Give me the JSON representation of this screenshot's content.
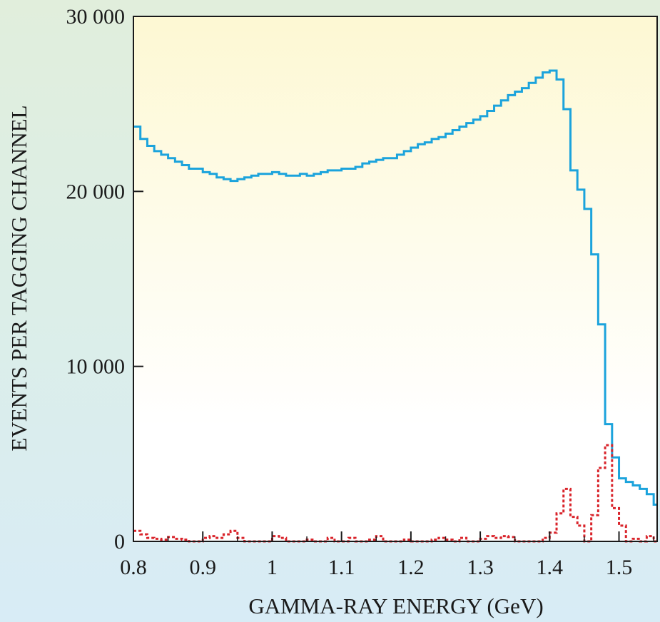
{
  "chart_data": {
    "type": "line",
    "title": "",
    "xlabel": "GAMMA-RAY ENERGY (GeV)",
    "ylabel": "EVENTS PER TAGGING CHANNEL",
    "xlim": [
      0.8,
      1.555
    ],
    "ylim": [
      0,
      30000
    ],
    "x_ticks": [
      0.8,
      0.9,
      1.0,
      1.1,
      1.2,
      1.3,
      1.4,
      1.5
    ],
    "x_tick_labels": [
      "0.8",
      "0.9",
      "1",
      "1.1",
      "1.2",
      "1.3",
      "1.4",
      "1.5"
    ],
    "y_ticks": [
      0,
      10000,
      20000,
      30000
    ],
    "y_tick_labels": [
      "0",
      "10 000",
      "20 000",
      "30 000"
    ],
    "grid": false,
    "legend": "none",
    "background_gradient": [
      "#fdf8d3",
      "#ffffff"
    ],
    "series": [
      {
        "style": "solid step",
        "color": "#1ba3dc",
        "x": [
          0.8,
          0.81,
          0.82,
          0.83,
          0.84,
          0.85,
          0.86,
          0.87,
          0.88,
          0.89,
          0.9,
          0.91,
          0.92,
          0.93,
          0.94,
          0.95,
          0.96,
          0.97,
          0.98,
          0.99,
          1.0,
          1.01,
          1.02,
          1.03,
          1.04,
          1.05,
          1.06,
          1.07,
          1.08,
          1.09,
          1.1,
          1.11,
          1.12,
          1.13,
          1.14,
          1.15,
          1.16,
          1.17,
          1.18,
          1.19,
          1.2,
          1.21,
          1.22,
          1.23,
          1.24,
          1.25,
          1.26,
          1.27,
          1.28,
          1.29,
          1.3,
          1.31,
          1.32,
          1.33,
          1.34,
          1.35,
          1.36,
          1.37,
          1.38,
          1.39,
          1.4,
          1.41,
          1.42,
          1.43,
          1.44,
          1.45,
          1.46,
          1.47,
          1.48,
          1.49,
          1.5,
          1.51,
          1.52,
          1.53,
          1.54,
          1.55
        ],
        "y": [
          23700,
          23000,
          22600,
          22300,
          22100,
          21900,
          21700,
          21500,
          21300,
          21300,
          21100,
          21000,
          20800,
          20700,
          20600,
          20700,
          20800,
          20900,
          21000,
          21000,
          21100,
          21000,
          20900,
          20900,
          21000,
          20900,
          21000,
          21100,
          21200,
          21200,
          21300,
          21300,
          21400,
          21600,
          21700,
          21800,
          21900,
          21900,
          22100,
          22300,
          22500,
          22700,
          22800,
          23000,
          23100,
          23300,
          23500,
          23700,
          23900,
          24100,
          24300,
          24600,
          24900,
          25200,
          25500,
          25700,
          25900,
          26200,
          26500,
          26800,
          26900,
          26400,
          24700,
          21200,
          20100,
          19000,
          16400,
          12400,
          6700,
          4800,
          3600,
          3400,
          3200,
          3000,
          2700,
          2100
        ]
      },
      {
        "style": "dotted",
        "color": "#d9242b",
        "x": [
          0.8,
          0.81,
          0.82,
          0.83,
          0.84,
          0.85,
          0.86,
          0.87,
          0.88,
          0.89,
          0.9,
          0.91,
          0.92,
          0.93,
          0.94,
          0.95,
          0.96,
          0.97,
          0.98,
          0.99,
          1.0,
          1.01,
          1.02,
          1.03,
          1.04,
          1.05,
          1.06,
          1.07,
          1.08,
          1.09,
          1.1,
          1.11,
          1.12,
          1.13,
          1.14,
          1.15,
          1.16,
          1.17,
          1.18,
          1.19,
          1.2,
          1.21,
          1.22,
          1.23,
          1.24,
          1.25,
          1.26,
          1.27,
          1.28,
          1.29,
          1.3,
          1.31,
          1.32,
          1.33,
          1.34,
          1.35,
          1.36,
          1.37,
          1.38,
          1.39,
          1.4,
          1.41,
          1.42,
          1.43,
          1.44,
          1.45,
          1.46,
          1.47,
          1.48,
          1.49,
          1.5,
          1.51,
          1.52,
          1.53,
          1.54,
          1.55
        ],
        "y": [
          600,
          400,
          200,
          150,
          100,
          250,
          150,
          100,
          0,
          0,
          200,
          300,
          200,
          400,
          600,
          200,
          0,
          0,
          0,
          0,
          300,
          200,
          0,
          0,
          0,
          100,
          0,
          0,
          200,
          0,
          0,
          200,
          0,
          0,
          100,
          300,
          0,
          0,
          0,
          100,
          0,
          0,
          0,
          100,
          200,
          100,
          0,
          200,
          0,
          0,
          150,
          300,
          200,
          300,
          250,
          0,
          0,
          0,
          0,
          200,
          500,
          1600,
          3000,
          1400,
          900,
          0,
          1500,
          4200,
          5500,
          1900,
          900,
          0,
          150,
          0,
          300,
          0
        ]
      }
    ]
  }
}
